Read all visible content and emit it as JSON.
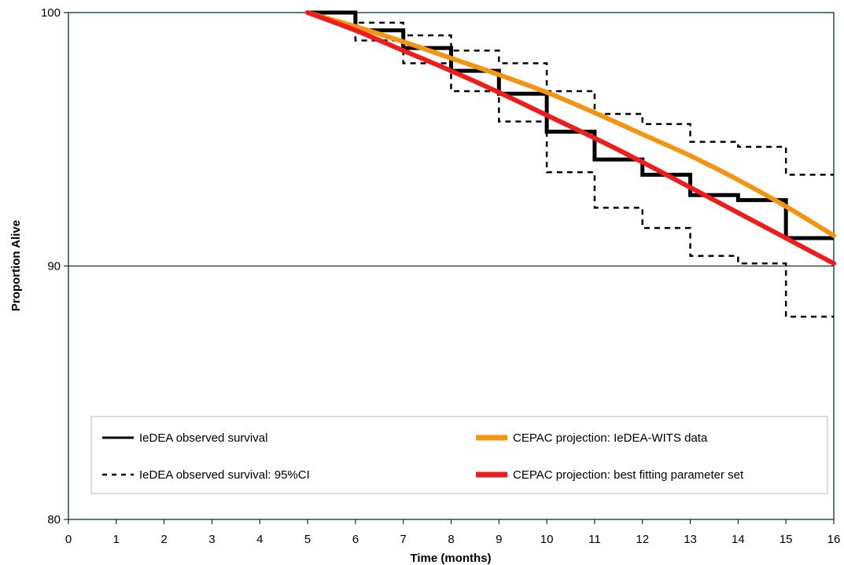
{
  "chart_data": {
    "type": "line",
    "title": "",
    "xlabel": "Time (months)",
    "ylabel": "Proportion Alive",
    "xlim": [
      0,
      16
    ],
    "ylim": [
      80,
      100
    ],
    "x_ticks": [
      0,
      1,
      2,
      3,
      4,
      5,
      6,
      7,
      8,
      9,
      10,
      11,
      12,
      13,
      14,
      15,
      16
    ],
    "y_ticks": [
      80,
      90,
      100
    ],
    "grid": "horizontal at 90",
    "legend_position": "bottom",
    "series": [
      {
        "name": "IeDEA observed survival",
        "style": "step-solid",
        "color": "#000000",
        "x": [
          5,
          6,
          7,
          8,
          9,
          10,
          11,
          12,
          13,
          14,
          15,
          16
        ],
        "y": [
          100,
          99.3,
          98.6,
          97.7,
          96.8,
          95.3,
          94.2,
          93.6,
          92.8,
          92.6,
          91.1,
          91.1
        ]
      },
      {
        "name": "IeDEA observed survival: 95%CI",
        "style": "step-dotted",
        "color": "#000000",
        "x": [
          5,
          6,
          7,
          8,
          9,
          10,
          11,
          12,
          13,
          14,
          15,
          16
        ],
        "y": [
          100,
          99.6,
          99.1,
          98.5,
          98.0,
          96.9,
          96.0,
          95.6,
          94.9,
          94.7,
          93.6,
          93.6
        ]
      },
      {
        "name": "",
        "style": "step-dotted",
        "color": "#000000",
        "x": [
          5,
          6,
          7,
          8,
          9,
          10,
          11,
          12,
          13,
          14,
          15,
          16
        ],
        "y": [
          100,
          98.9,
          98.0,
          96.9,
          95.7,
          93.7,
          92.3,
          91.5,
          90.4,
          90.1,
          88.0,
          88.0
        ]
      },
      {
        "name": "CEPAC projection: IeDEA-WITS data",
        "style": "curve",
        "color": "#F39413",
        "x": [
          5,
          6,
          7,
          8,
          9,
          10,
          11,
          12,
          13,
          14,
          15,
          16
        ],
        "y": [
          100,
          99.45,
          98.85,
          98.2,
          97.55,
          96.85,
          96.05,
          95.2,
          94.35,
          93.4,
          92.35,
          91.2
        ]
      },
      {
        "name": "CEPAC projection: best fitting parameter set",
        "style": "curve",
        "color": "#EE1C1C",
        "x": [
          5,
          6,
          7,
          8,
          9,
          10,
          11,
          12,
          13,
          14,
          15,
          16
        ],
        "y": [
          100,
          99.3,
          98.5,
          97.7,
          96.85,
          95.95,
          95.05,
          94.1,
          93.1,
          92.1,
          91.1,
          90.1
        ]
      }
    ],
    "legend": [
      {
        "label": "IeDEA observed survival",
        "symbol": "solid",
        "color": "#000000"
      },
      {
        "label": "CEPAC projection: IeDEA-WITS data",
        "symbol": "thick",
        "color": "#F39413"
      },
      {
        "label": "IeDEA observed survival: 95%CI",
        "symbol": "dotted",
        "color": "#000000"
      },
      {
        "label": "CEPAC projection: best fitting parameter set",
        "symbol": "thick",
        "color": "#EE1C1C"
      }
    ]
  }
}
